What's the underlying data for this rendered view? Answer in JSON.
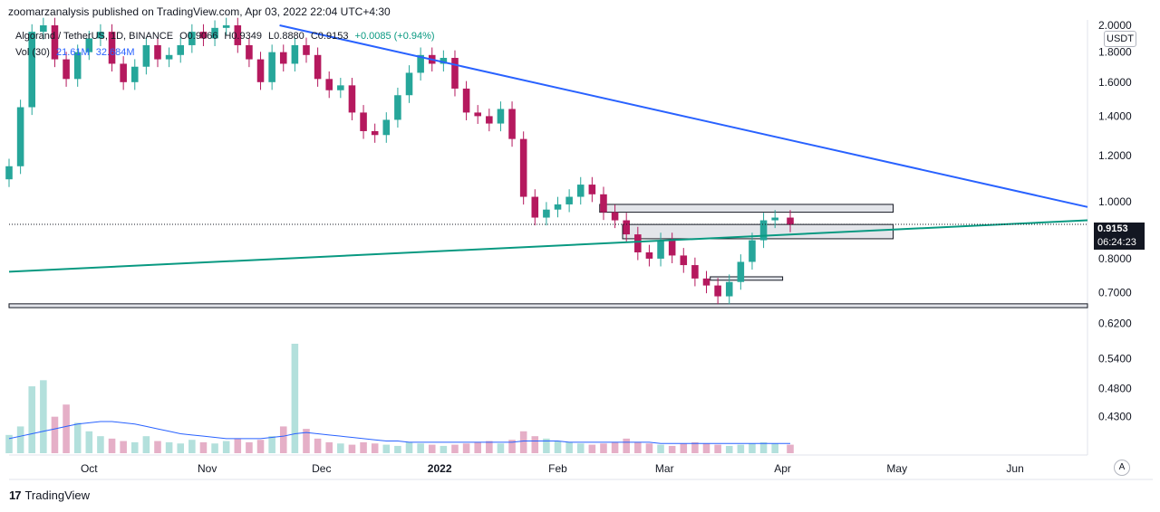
{
  "header": {
    "publisher_text": "zoomarzanalysis published on TradingView.com, Apr 03, 2022 22:04 UTC+4:30"
  },
  "legend": {
    "symbol": "Algorand / TetherUS, 1D, BINANCE",
    "open": "O0.9066",
    "high": "H0.9349",
    "low": "L0.8880",
    "close": "C0.9153",
    "change": "+0.0085 (+0.94%)"
  },
  "volume_legend": {
    "label": "Vol (30)",
    "value1": "21.61M",
    "value2": "32.684M"
  },
  "currency": "USDT",
  "current_price": "0.9153",
  "countdown": "06:24:23",
  "auto_label": "A",
  "footer": {
    "brand": "TradingView"
  },
  "colors": {
    "up": "#26a69a",
    "down": "#b5195e",
    "trendline_blue": "#2962ff",
    "trendline_green": "#089981",
    "volume_ma": "#2962ff"
  },
  "chart_data": {
    "type": "candlestick",
    "title": "Algorand / TetherUS, 1D, BINANCE",
    "y_scale": "log",
    "ylim": [
      0.37,
      2.0
    ],
    "y_ticks": [
      "2.0000",
      "1.8000",
      "1.6000",
      "1.4000",
      "1.2000",
      "1.0000",
      "0.8000",
      "0.7000",
      "0.6200",
      "0.5400",
      "0.4800",
      "0.4300"
    ],
    "x_ticks": [
      "Oct",
      "Nov",
      "Dec",
      "2022",
      "Feb",
      "Mar",
      "Apr",
      "May",
      "Jun"
    ],
    "x_tick_dates": [
      "2021-10-01",
      "2021-11-01",
      "2021-12-01",
      "2022-01-01",
      "2022-02-01",
      "2022-03-01",
      "2022-04-01",
      "2022-05-01",
      "2022-06-01"
    ],
    "date_range": [
      "2021-09-10",
      "2022-06-20"
    ],
    "close_series": {
      "dates": [
        "2021-09-10",
        "2021-09-13",
        "2021-09-16",
        "2021-09-19",
        "2021-09-22",
        "2021-09-25",
        "2021-09-28",
        "2021-10-01",
        "2021-10-04",
        "2021-10-07",
        "2021-10-10",
        "2021-10-13",
        "2021-10-16",
        "2021-10-19",
        "2021-10-22",
        "2021-10-25",
        "2021-10-28",
        "2021-10-31",
        "2021-11-03",
        "2021-11-06",
        "2021-11-09",
        "2021-11-12",
        "2021-11-15",
        "2021-11-18",
        "2021-11-21",
        "2021-11-24",
        "2021-11-27",
        "2021-11-30",
        "2021-12-03",
        "2021-12-06",
        "2021-12-09",
        "2021-12-12",
        "2021-12-15",
        "2021-12-18",
        "2021-12-21",
        "2021-12-24",
        "2021-12-27",
        "2021-12-30",
        "2022-01-02",
        "2022-01-05",
        "2022-01-08",
        "2022-01-11",
        "2022-01-14",
        "2022-01-17",
        "2022-01-20",
        "2022-01-23",
        "2022-01-26",
        "2022-01-29",
        "2022-02-01",
        "2022-02-04",
        "2022-02-07",
        "2022-02-10",
        "2022-02-13",
        "2022-02-16",
        "2022-02-19",
        "2022-02-22",
        "2022-02-25",
        "2022-02-28",
        "2022-03-03",
        "2022-03-06",
        "2022-03-09",
        "2022-03-12",
        "2022-03-15",
        "2022-03-18",
        "2022-03-21",
        "2022-03-24",
        "2022-03-27",
        "2022-03-30",
        "2022-04-03"
      ],
      "close": [
        1.15,
        1.45,
        1.95,
        2.0,
        1.75,
        1.62,
        1.8,
        1.9,
        1.95,
        1.72,
        1.6,
        1.7,
        1.85,
        1.75,
        1.78,
        1.85,
        1.95,
        1.9,
        1.98,
        2.0,
        1.85,
        1.75,
        1.6,
        1.8,
        1.72,
        1.85,
        1.78,
        1.62,
        1.55,
        1.58,
        1.42,
        1.32,
        1.3,
        1.38,
        1.52,
        1.66,
        1.78,
        1.72,
        1.76,
        1.56,
        1.42,
        1.4,
        1.36,
        1.44,
        1.28,
        1.02,
        0.94,
        0.97,
        0.99,
        1.02,
        1.07,
        1.03,
        0.96,
        0.93,
        0.88,
        0.82,
        0.8,
        0.86,
        0.81,
        0.78,
        0.74,
        0.72,
        0.69,
        0.73,
        0.79,
        0.86,
        0.93,
        0.94,
        0.915
      ]
    },
    "volume": {
      "label": "Vol (30)",
      "values_m": [
        15,
        22,
        55,
        60,
        30,
        40,
        25,
        18,
        14,
        12,
        10,
        9,
        14,
        10,
        9,
        8,
        11,
        9,
        8,
        10,
        12,
        9,
        11,
        14,
        22,
        90,
        20,
        12,
        9,
        8,
        7,
        9,
        8,
        7,
        6,
        9,
        8,
        7,
        6,
        7,
        8,
        9,
        10,
        8,
        11,
        18,
        14,
        12,
        10,
        9,
        8,
        7,
        8,
        9,
        12,
        9,
        8,
        7,
        6,
        8,
        9,
        8,
        7,
        6,
        7,
        8,
        9,
        8,
        7
      ],
      "ma_m": [
        12,
        14,
        16,
        18,
        20,
        22,
        24,
        25,
        26,
        26,
        25,
        24,
        22,
        20,
        18,
        16,
        15,
        14,
        13,
        12,
        12,
        12,
        12,
        13,
        14,
        16,
        17,
        16,
        15,
        14,
        13,
        12,
        11,
        10,
        10,
        9,
        9,
        9,
        9,
        9,
        9,
        9,
        9,
        9,
        9,
        10,
        10,
        10,
        10,
        9,
        9,
        9,
        9,
        9,
        9,
        9,
        9,
        8,
        8,
        8,
        8,
        8,
        8,
        8,
        8,
        8,
        8,
        8,
        8
      ]
    },
    "drawings": [
      {
        "type": "trendline",
        "color": "blue",
        "from": {
          "date": "2021-11-20",
          "price": 2.0
        },
        "to": {
          "date": "2022-06-20",
          "price": 0.98
        }
      },
      {
        "type": "trendline",
        "color": "green",
        "from": {
          "date": "2021-09-10",
          "price": 0.76
        },
        "to": {
          "date": "2022-06-20",
          "price": 0.93
        }
      },
      {
        "type": "zone",
        "from_date": "2022-02-12",
        "to_date": "2022-04-30",
        "low": 0.96,
        "high": 0.99
      },
      {
        "type": "zone",
        "from_date": "2022-02-18",
        "to_date": "2022-04-30",
        "low": 0.865,
        "high": 0.915
      },
      {
        "type": "zone",
        "from_date": "2022-03-13",
        "to_date": "2022-04-01",
        "low": 0.735,
        "high": 0.745
      },
      {
        "type": "zone",
        "from_date": "2021-09-10",
        "to_date": "2022-06-20",
        "low": 0.66,
        "high": 0.67
      }
    ]
  }
}
